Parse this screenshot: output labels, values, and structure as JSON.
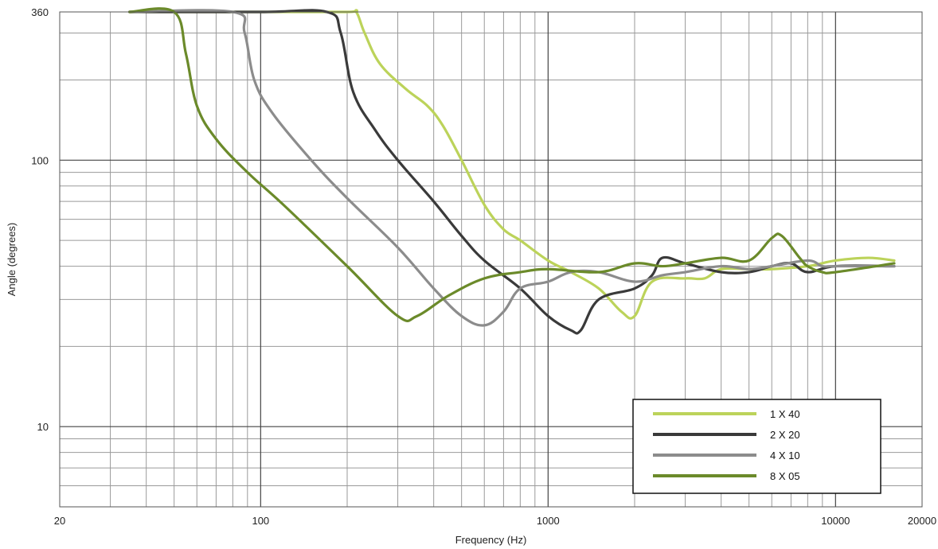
{
  "chart_data": {
    "type": "line",
    "xlabel": "Frequency (Hz)",
    "ylabel": "Angle (degrees)",
    "x_scale": "log",
    "y_scale": "log",
    "xlim": [
      20,
      20000
    ],
    "ylim": [
      5,
      360
    ],
    "x_tick_labels": [
      "20",
      "100",
      "1000",
      "10000",
      "20000"
    ],
    "y_tick_labels": [
      "10",
      "100",
      "360"
    ],
    "grid": true,
    "legend_position": "bottom-right",
    "series": [
      {
        "name": "1 X 40",
        "color": "#bcd35a",
        "points": [
          [
            35,
            360
          ],
          [
            100,
            360
          ],
          [
            200,
            360
          ],
          [
            215,
            360
          ],
          [
            230,
            300
          ],
          [
            260,
            230
          ],
          [
            320,
            185
          ],
          [
            380,
            160
          ],
          [
            430,
            135
          ],
          [
            500,
            100
          ],
          [
            600,
            68
          ],
          [
            700,
            55
          ],
          [
            800,
            50
          ],
          [
            1000,
            42
          ],
          [
            1200,
            38
          ],
          [
            1500,
            33
          ],
          [
            1800,
            27
          ],
          [
            2000,
            26
          ],
          [
            2300,
            35
          ],
          [
            3000,
            36
          ],
          [
            3500,
            36
          ],
          [
            4000,
            39
          ],
          [
            5000,
            39
          ],
          [
            6000,
            39
          ],
          [
            8000,
            40
          ],
          [
            10000,
            42
          ],
          [
            13000,
            43
          ],
          [
            16000,
            42
          ]
        ]
      },
      {
        "name": "2 X 20",
        "color": "#3a3a3a",
        "points": [
          [
            35,
            360
          ],
          [
            100,
            360
          ],
          [
            170,
            360
          ],
          [
            190,
            300
          ],
          [
            210,
            180
          ],
          [
            250,
            130
          ],
          [
            300,
            100
          ],
          [
            400,
            70
          ],
          [
            500,
            52
          ],
          [
            600,
            42
          ],
          [
            800,
            33
          ],
          [
            1000,
            26
          ],
          [
            1200,
            23
          ],
          [
            1300,
            23
          ],
          [
            1500,
            30
          ],
          [
            2000,
            33
          ],
          [
            2300,
            37
          ],
          [
            2500,
            43
          ],
          [
            3000,
            41
          ],
          [
            4000,
            38
          ],
          [
            5000,
            38
          ],
          [
            6000,
            40
          ],
          [
            7000,
            41
          ],
          [
            8000,
            38
          ],
          [
            10000,
            40
          ],
          [
            16000,
            40
          ]
        ]
      },
      {
        "name": "4 X 10",
        "color": "#8c8c8c",
        "points": [
          [
            35,
            360
          ],
          [
            80,
            360
          ],
          [
            88,
            300
          ],
          [
            95,
            200
          ],
          [
            110,
            150
          ],
          [
            150,
            100
          ],
          [
            200,
            72
          ],
          [
            300,
            47
          ],
          [
            400,
            33
          ],
          [
            500,
            26
          ],
          [
            600,
            24
          ],
          [
            700,
            27
          ],
          [
            800,
            33
          ],
          [
            1000,
            35
          ],
          [
            1200,
            38
          ],
          [
            1500,
            38
          ],
          [
            2000,
            35
          ],
          [
            2500,
            37
          ],
          [
            3000,
            38
          ],
          [
            4000,
            40
          ],
          [
            5000,
            39
          ],
          [
            6000,
            40
          ],
          [
            8000,
            42
          ],
          [
            9000,
            40
          ],
          [
            10000,
            40
          ],
          [
            16000,
            40
          ]
        ]
      },
      {
        "name": "8 X 05",
        "color": "#6b8a2a",
        "points": [
          [
            35,
            360
          ],
          [
            50,
            360
          ],
          [
            55,
            250
          ],
          [
            60,
            160
          ],
          [
            70,
            120
          ],
          [
            90,
            90
          ],
          [
            120,
            68
          ],
          [
            200,
            40
          ],
          [
            300,
            26
          ],
          [
            350,
            26
          ],
          [
            450,
            31
          ],
          [
            600,
            36
          ],
          [
            800,
            38
          ],
          [
            1000,
            39
          ],
          [
            1500,
            38
          ],
          [
            2000,
            41
          ],
          [
            2500,
            40
          ],
          [
            3000,
            41
          ],
          [
            4000,
            43
          ],
          [
            5000,
            42
          ],
          [
            6000,
            51
          ],
          [
            6500,
            52
          ],
          [
            7500,
            43
          ],
          [
            8000,
            40
          ],
          [
            9000,
            38
          ],
          [
            10000,
            38
          ],
          [
            16000,
            41
          ]
        ]
      }
    ]
  }
}
